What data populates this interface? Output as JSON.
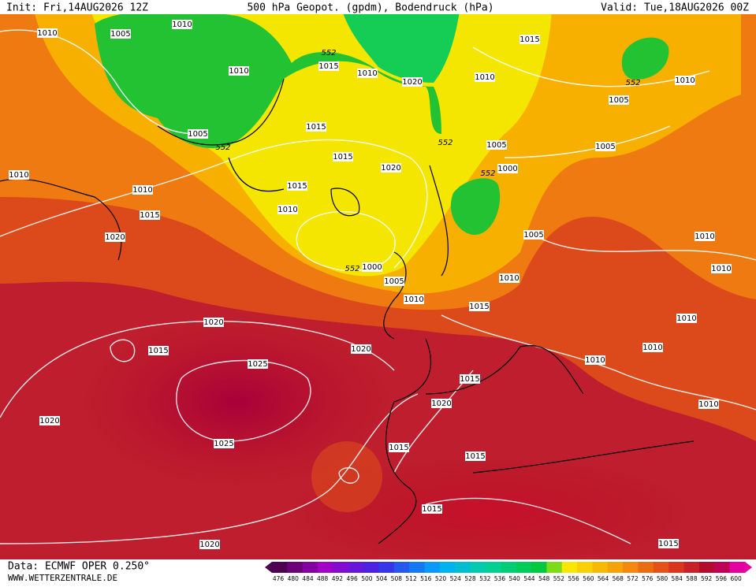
{
  "header": {
    "init": "Init: Fri,14AUG2026 12Z",
    "title": "500 hPa Geopot. (gpdm), Bodendruck (hPa)",
    "valid": "Valid: Tue,18AUG2026 00Z"
  },
  "footer": {
    "source": "Data: ECMWF OPER 0.250°",
    "website": "WWW.WETTERZENTRALE.DE"
  },
  "colorbar": {
    "ticks": [
      "476",
      "480",
      "484",
      "488",
      "492",
      "496",
      "500",
      "504",
      "508",
      "512",
      "516",
      "520",
      "524",
      "528",
      "532",
      "536",
      "540",
      "544",
      "548",
      "552",
      "556",
      "560",
      "564",
      "568",
      "572",
      "576",
      "580",
      "584",
      "588",
      "592",
      "596",
      "600"
    ]
  },
  "isobar_labels": [
    "1010",
    "1005",
    "1010",
    "552",
    "1015",
    "1010",
    "1015",
    "1010",
    "1020",
    "1010",
    "1010",
    "552",
    "1005",
    "1005",
    "552",
    "1015",
    "552",
    "1005",
    "1005",
    "1010",
    "1015",
    "1020",
    "552",
    "1000",
    "1010",
    "1015",
    "1010",
    "1015",
    "1020",
    "1005",
    "1010",
    "552",
    "1000",
    "1010",
    "1005",
    "1010",
    "1010",
    "1015",
    "1020",
    "1010",
    "1015",
    "1020",
    "1010",
    "1010",
    "1025",
    "1015",
    "1020",
    "1010",
    "1020",
    "1025",
    "1015",
    "1015",
    "1015",
    "1020",
    "1015"
  ]
}
